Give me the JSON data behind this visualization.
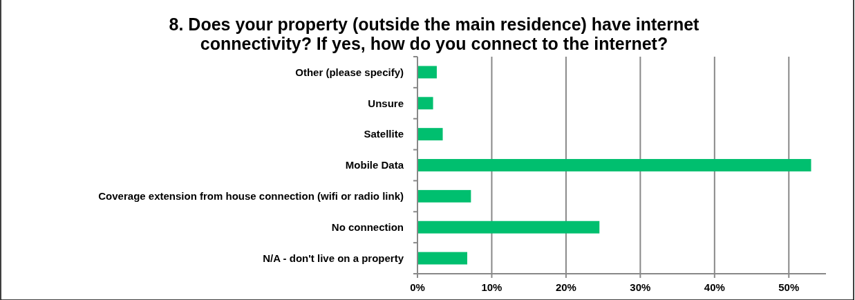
{
  "chart_data": {
    "type": "bar",
    "orientation": "horizontal",
    "title": "8. Does your property (outside the main residence) have internet connectivity? If yes, how do you connect to the internet?",
    "categories": [
      "Other (please specify)",
      "Unsure",
      "Satellite",
      "Mobile Data",
      "Coverage extension from house connection (wifi or radio link)",
      "No connection",
      "N/A - don't live on a property"
    ],
    "values": [
      2.6,
      2.1,
      3.4,
      53.0,
      7.2,
      24.5,
      6.7
    ],
    "color": "#00bf6f",
    "xlim": [
      0,
      55
    ],
    "xticks": [
      {
        "value": 0,
        "label": "0%"
      },
      {
        "value": 10,
        "label": "10%"
      },
      {
        "value": 20,
        "label": "20%"
      },
      {
        "value": 30,
        "label": "30%"
      },
      {
        "value": 40,
        "label": "40%"
      },
      {
        "value": 50,
        "label": "50%"
      }
    ],
    "grid": "x"
  }
}
